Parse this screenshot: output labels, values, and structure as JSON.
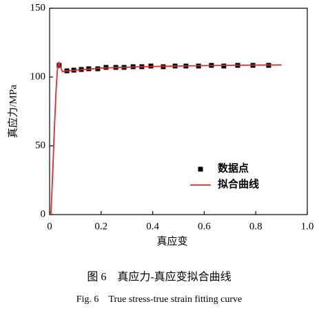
{
  "chart_data": {
    "type": "scatter",
    "x_label": "真应变",
    "y_label": "真应力/MPa",
    "caption": "图 6　真应力-真应变拟合曲线",
    "caption_en": "Fig. 6　True stress-true strain fitting curve",
    "xlim": [
      0,
      1
    ],
    "ylim": [
      0,
      150
    ],
    "xticks": [
      0,
      0.2,
      0.4,
      0.6,
      0.8,
      {
        "value": 1,
        "label": "1.0"
      }
    ],
    "yticks": [
      0,
      50,
      100,
      150
    ],
    "legend": "lower-right",
    "series": [
      {
        "name": "数据点",
        "type": "scatter",
        "color": "#000000",
        "x": [
          0.037,
          0.067,
          0.094,
          0.123,
          0.152,
          0.187,
          0.219,
          0.257,
          0.289,
          0.324,
          0.358,
          0.393,
          0.441,
          0.487,
          0.529,
          0.578,
          0.628,
          0.676,
          0.73,
          0.789,
          0.85
        ],
        "values": [
          108.5,
          104.5,
          105,
          105.5,
          106,
          106,
          107,
          107,
          107,
          107.5,
          107.5,
          108,
          107.5,
          108,
          108,
          108,
          108.5,
          108,
          108.5,
          108.5,
          108.5
        ]
      },
      {
        "name": "拟合曲线",
        "type": "line",
        "color": "#e8262b",
        "x": [
          0.005,
          0.012,
          0.018,
          0.025,
          0.03,
          0.035,
          0.04,
          0.05,
          0.07,
          0.1,
          0.2,
          0.3,
          0.4,
          0.5,
          0.6,
          0.7,
          0.8,
          0.9
        ],
        "values": [
          0,
          30,
          60,
          90,
          105,
          111,
          108,
          104,
          104.5,
          105,
          106.5,
          107.2,
          107.7,
          108,
          108.3,
          108.5,
          108.7,
          108.8
        ]
      }
    ]
  }
}
